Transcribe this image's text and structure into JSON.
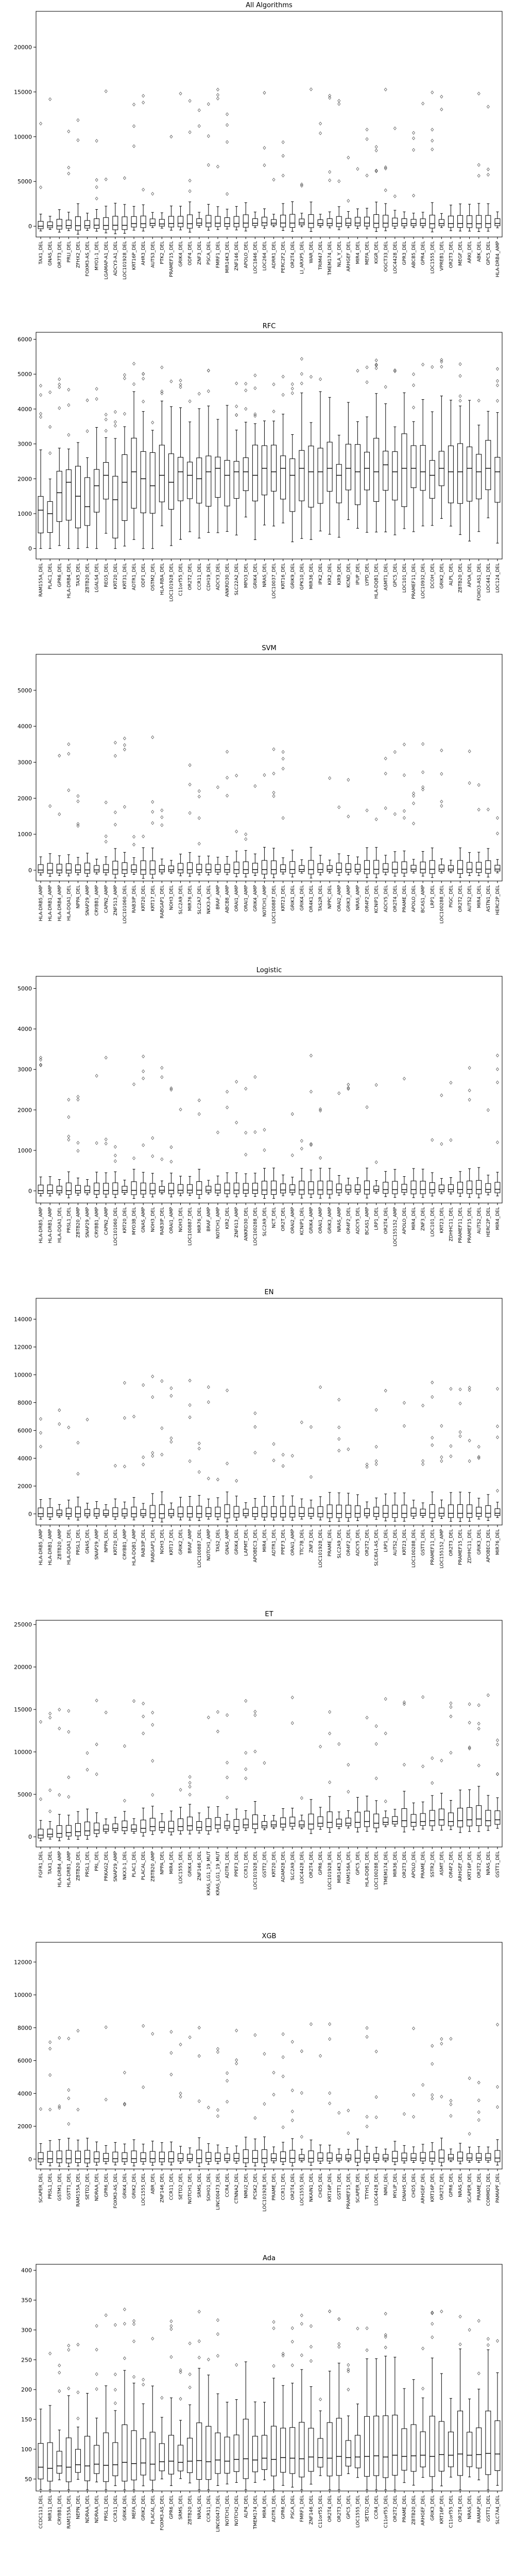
{
  "figure": {
    "background": "#ffffff",
    "box_edge_color": "#000000",
    "median_color": "#000000",
    "flier_marker": "diamond"
  },
  "chart_data": [
    {
      "type": "box",
      "title": "All Algorithms",
      "xlabel": "",
      "ylabel": "",
      "ylim": [
        -1200,
        24000
      ],
      "yticks": [
        0,
        5000,
        10000,
        15000,
        20000
      ],
      "categories": [
        "TAX1_DEL",
        "GNAS_DEL",
        "OR7T3_DEL",
        "PRLI_DEL",
        "ZFHX2_DEL",
        "FOXM3-AS_DEL",
        "MYO1-1_DEL",
        "LGAMAP-A1_DEL",
        "ADCY3-A1_DEL",
        "LOC101928_DEL",
        "KRT16P_DEL",
        "AHR3_DEL",
        "AUTS3_DEL",
        "PTK2_DEL",
        "PRAMEF15_DEL",
        "GRIK4_DEL",
        "ODF4_DEL",
        "ZNF3_DEL",
        "PSCA_DEL",
        "FMRF1_DEL",
        "MIR14K3_DEL",
        "ZNF146_DEL",
        "APOLO_DEL",
        "LOC1846_DEL",
        "LOC264_DEL",
        "ADRR1_DEL",
        "PERC2F2_DEL",
        "OR2T4_DEL",
        "LI_ARXP5_DEL",
        "WAR_DEL",
        "TRIM47_DEL",
        "TMEM174_DEL",
        "NLA_Y_DEL",
        "ARHGEF_DEL",
        "MIR4_DEL",
        "MEFA_DEL",
        "KIGR_DEL",
        "OGCT33_DEL",
        "LOC4428_DEL",
        "GPR3_DEL",
        "ABCB5_DEL",
        "GPR4_DEL",
        "LOC1555_DEL",
        "VPREB1_DEL",
        "OR2T3_DEL",
        "MEGF_DEL",
        "ARKI_DEL",
        "ABK_DEL",
        "GPC5_DEL",
        "HLA-DRB4_AMP"
      ],
      "series": [
        {
          "medians": [
            0,
            50,
            40,
            80,
            60,
            70,
            120,
            90,
            110,
            100,
            300,
            280,
            320,
            260,
            310,
            330,
            280,
            350,
            360,
            340,
            300,
            320,
            350,
            330,
            380,
            340,
            360,
            350,
            370,
            330,
            300,
            320,
            330,
            340,
            360,
            350,
            330,
            340,
            320,
            310,
            300,
            320,
            280,
            290,
            300,
            310,
            290,
            280,
            300,
            320
          ]
        }
      ]
    },
    {
      "type": "box",
      "title": "RFC",
      "xlabel": "",
      "ylabel": "",
      "ylim": [
        -300,
        6200
      ],
      "yticks": [
        0,
        1000,
        2000,
        3000,
        4000,
        5000,
        6000
      ],
      "categories": [
        "RAM155A_DEL",
        "PLAC1_DEL",
        "GPR6_DEL",
        "HLA-DRB4_DEL",
        "TAX5_DEL",
        "ZBTB20_DEL",
        "LGALS4_DEL",
        "REG5_DEL",
        "KRT20_DEL",
        "KRT31_DEL",
        "ADTR1_DEL",
        "ODF1_DEL",
        "OSTM2_DEL",
        "HLA-RBA_DEL",
        "LOC101928_DEL",
        "C11orf55_DEL",
        "OR2T2_DEL",
        "CCR11_DEL",
        "CDH19_DEL",
        "ADCY3_DEL",
        "ANKRD30_DEL",
        "SLC22A2_DEL",
        "MPO3_DEL",
        "GRIK4_DEL",
        "NRAS_DEL",
        "LOC10037_DEL",
        "KRT16_DEL",
        "GRIK9_DEL",
        "GPK10_DEL",
        "MIR36_DEL",
        "IPK2_DEL",
        "KIR2_DEL",
        "KIR9_DEL",
        "KCND_DEL",
        "IPUP_DEL",
        "LYPD_DEL",
        "HLA-DQB1_DEL",
        "ASMT1_DEL",
        "GPC5_DEL",
        "LOC101_DEL",
        "PRAMEF11_DEL",
        "LOC10932_DEL",
        "DCOH_DEL",
        "GRIK2_DEL",
        "ALPL_DEL",
        "ZBTB20_DEL",
        "APOA_DEL",
        "FOXO3-AS1_DEL",
        "LOC441_DEL",
        "LOC124_DEL"
      ],
      "series": [
        {
          "medians": [
            1100,
            1000,
            1600,
            1900,
            1500,
            1200,
            1800,
            2100,
            1400,
            1900,
            2200,
            2000,
            1800,
            2100,
            1900,
            2200,
            2100,
            2000,
            2200,
            2300,
            2100,
            2200,
            2200,
            2100,
            2300,
            2200,
            2300,
            2100,
            2300,
            2200,
            2200,
            2300,
            2100,
            2300,
            2200,
            2300,
            2200,
            2400,
            2200,
            2300,
            2300,
            2200,
            2100,
            2300,
            2200,
            2200,
            2300,
            2200,
            2300,
            2200
          ]
        }
      ]
    },
    {
      "type": "box",
      "title": "SVM",
      "xlabel": "",
      "ylabel": "",
      "ylim": [
        -300,
        6000
      ],
      "yticks": [
        0,
        1000,
        2000,
        3000,
        4000,
        5000
      ],
      "categories": [
        "HLA-DRB5_AMP",
        "HLA-DRB1_AMP",
        "HLA-DRB4_AMP",
        "HLA-DQA1_DEL",
        "NPPA_DEL",
        "SNAP29_AMP",
        "CRYBB1_AMP",
        "CAPN2_AMP",
        "ZNF513_AMP",
        "LOC101060_DEL",
        "RAB3IP_DEL",
        "KRT20_DEL",
        "KRT17_DEL",
        "RABGAP1_DEL",
        "NOH3_DEL",
        "SLC2A9_DEL",
        "MIR76_DEL",
        "SLC2A7_DEL",
        "NKX3-A_DEL",
        "BRAF_AMP",
        "ABCB8_AMP",
        "ORAI1_AMP",
        "ORAI1_AMP",
        "GRIK4_AMP",
        "NOTCH1_AMP",
        "LOC100887_DEL",
        "KRT23_DEL",
        "GRIK1_DEL",
        "GRIK4_DEL",
        "OR4K1_DEL",
        "TAS2R_DEL",
        "NPPC_DEL",
        "ORAI2_AMP",
        "GRIK3_AMP",
        "NRAS_AMP",
        "OR4F2_DEL",
        "KCNIP1_DEL",
        "ADCY5_DEL",
        "OR2T4_DEL",
        "PRAME_DEL",
        "APOLO_DEL",
        "BCAS1_AMP",
        "LRP1_DEL",
        "LOC100288_DEL",
        "PIGC_DEL",
        "OR2T2_DEL",
        "AUTS2_DEL",
        "MIR4_DEL",
        "ASTN1_DEL",
        "HERC2P_DEL"
      ],
      "series": [
        {
          "medians": [
            5,
            5,
            5,
            5,
            6,
            8,
            8,
            8,
            10,
            10,
            10,
            10,
            12,
            12,
            12,
            12,
            14,
            14,
            14,
            16,
            16,
            16,
            16,
            18,
            18,
            18,
            18,
            20,
            20,
            20,
            20,
            22,
            22,
            22,
            22,
            24,
            24,
            24,
            24,
            26,
            26,
            26,
            26,
            28,
            28,
            28,
            28,
            30,
            30,
            30
          ]
        }
      ]
    },
    {
      "type": "box",
      "title": "Logistic",
      "xlabel": "",
      "ylabel": "",
      "ylim": [
        -300,
        5300
      ],
      "yticks": [
        0,
        1000,
        2000,
        3000,
        4000,
        5000
      ],
      "categories": [
        "HLA-DRB5_AMP",
        "HLA-DRB1_AMP",
        "HLA-DQA1_DEL",
        "PRSL1_DEL",
        "ZBTB20_AMP",
        "SNAP29_AMP",
        "CRYBB1_AMP",
        "CAPN2_AMP",
        "LOC101060_DEL",
        "KRT20_DEL",
        "MYO3B_DEL",
        "GNAS_AMP",
        "NOH3_DEL",
        "RAB3IP_DEL",
        "ORAI1_AMP",
        "NOH3_DEL",
        "LOC100887_DEL",
        "MIR76_DEL",
        "BRAF_AMP",
        "NOTCH1_AMP",
        "KIR2_DEL",
        "ZNF613_AMP",
        "ANKRD30_DEL",
        "LOC100288_DEL",
        "SLC2A9_DEL",
        "NCT_DEL",
        "OR2T_DEL",
        "ORAI2_AMP",
        "KCNIP1_DEL",
        "GRIK4_AMP",
        "ORAI1_AMP",
        "GRIK3_AMP",
        "NRAS_AMP",
        "OR4F2_DEL",
        "ADCY5_DEL",
        "BCAS1_AMP",
        "LRP1_DEL",
        "OR2T4_DEL",
        "LOC155152_AMP",
        "APOLO_DEL",
        "MIR4_DEL",
        "ZNF3_DEL",
        "LOC101_DEL",
        "KRT23_DEL",
        "ZDHHC11_DEL",
        "PRAMEF11_DEL",
        "PRAMEF15_DEL",
        "AUTS2_DEL",
        "HERC2P_DEL",
        "MIR4_DEL"
      ],
      "series": [
        {
          "medians": [
            5,
            5,
            5,
            6,
            8,
            8,
            8,
            10,
            10,
            10,
            12,
            12,
            12,
            14,
            14,
            14,
            16,
            16,
            16,
            18,
            18,
            18,
            20,
            20,
            20,
            22,
            22,
            22,
            24,
            24,
            24,
            26,
            26,
            26,
            28,
            28,
            28,
            30,
            30,
            30,
            32,
            32,
            32,
            34,
            34,
            34,
            36,
            36,
            36,
            38
          ]
        }
      ]
    },
    {
      "type": "box",
      "title": "EN",
      "xlabel": "",
      "ylabel": "",
      "ylim": [
        -800,
        15500
      ],
      "yticks": [
        0,
        2000,
        4000,
        6000,
        8000,
        10000,
        12000,
        14000
      ],
      "categories": [
        "HLA-DRB5_AMP",
        "HLA-DRB1_AMP",
        "ZBTB20_AMP",
        "HLA-DQA1_DEL",
        "PRSL1_DEL",
        "GNAS_DEL",
        "SNAP29_AMP",
        "NPPA_DEL",
        "KRT20_DEL",
        "CRYBB1_AMP",
        "HLA-DQB1_AMP",
        "RAB3IP_DEL",
        "RABGAP1_DEL",
        "NOH3_DEL",
        "KRT17_DEL",
        "GRIK2_DEL",
        "BRAF_AMP",
        "LOC100887_DEL",
        "NOTCH1_AMP",
        "TAS2_DEL",
        "GNAS_AMP",
        "GRIK4_DEL",
        "LAPMT_DEL",
        "APOBEC3_DEL",
        "MIR4_DEL",
        "ADTR1_DEL",
        "PPEF3_DEL",
        "ORAI1_AMP",
        "TTC7B_DEL",
        "ZNF3_DEL",
        "LOC101928_DEL",
        "PRAME_DEL",
        "SLC2A9_DEL",
        "OR4F2_DEL",
        "ADCY5_DEL",
        "OR2T2_DEL",
        "SLC8A1-AS_DEL",
        "LRP1_DEL",
        "AUTS2_DEL",
        "KRT23_DEL",
        "LOC100288_DEL",
        "GSTT1_DEL",
        "PRAMEF11_DEL",
        "LOC155152_AMP",
        "OR2T3_DEL",
        "PRAMEF15_DEL",
        "ZDHHC11_DEL",
        "GRIK3_DEL",
        "APOBEC3_DEL",
        "MIR76_DEL"
      ],
      "series": [
        {
          "medians": [
            10,
            10,
            10,
            10,
            12,
            12,
            12,
            14,
            14,
            14,
            16,
            16,
            16,
            18,
            18,
            18,
            20,
            20,
            20,
            22,
            22,
            22,
            24,
            24,
            24,
            26,
            26,
            26,
            28,
            28,
            28,
            30,
            30,
            30,
            32,
            32,
            32,
            34,
            34,
            34,
            36,
            36,
            36,
            38,
            38,
            38,
            40,
            40,
            40,
            42
          ]
        }
      ]
    },
    {
      "type": "box",
      "title": "ET",
      "xlabel": "",
      "ylabel": "",
      "ylim": [
        -1200,
        25500
      ],
      "yticks": [
        0,
        5000,
        10000,
        15000,
        20000,
        25000
      ],
      "categories": [
        "FGFR1_DEL",
        "TAX1_DEL",
        "HLA-DRB4_AMP",
        "HLA-DRB1_AMP",
        "ZBTB20_DEL",
        "PRSL1_DEL",
        "PRL_DEL",
        "PRKAG2_DEL",
        "SNAP29_AMP",
        "NKX3-1_DEL",
        "PLAC1_DEL",
        "PLACAL_DEL",
        "ZBTB20_AMP",
        "NPPA_DEL",
        "MIR4_DEL",
        "LOC1555_DEL",
        "GRIK4_DEL",
        "ZNF146_DEL",
        "KRAS_LG1_19_MUT",
        "KRAS_LG1_19_MUT",
        "ADTR1_DEL",
        "PPEF3_DEL",
        "CCR11_DEL",
        "LOC101928_DEL",
        "GSTT2_DEL",
        "KRT20_DEL",
        "ADAM28_DEL",
        "SLC2A9_DEL",
        "LOC4428_DEL",
        "OR2T4_DEL",
        "GPR6_DEL",
        "LOC101928_DEL",
        "MIR14K3_DEL",
        "FAM156A_DEL",
        "GPC5_DEL",
        "HLA-DQB1_DEL",
        "LOC100288_DEL",
        "TMEM174_DEL",
        "MIR36_DEL",
        "OR2T3_DEL",
        "APOLO_DEL",
        "PRAME_DEL",
        "SSTR2_DEL",
        "ASMT_DEL",
        "OR4F2_DEL",
        "ARHGEF_DEL",
        "KRT16P_DEL",
        "OR2T2_DEL",
        "NRAS_DEL",
        "GSTT1_DEL"
      ],
      "series": [
        {
          "medians": [
            200,
            300,
            400,
            500,
            600,
            700,
            800,
            900,
            1000,
            1100,
            900,
            1000,
            1200,
            1100,
            1000,
            1200,
            1300,
            1100,
            1200,
            1400,
            1300,
            1200,
            1400,
            1500,
            1300,
            1400,
            1500,
            1600,
            1400,
            1500,
            1600,
            1700,
            1500,
            1600,
            1700,
            1800,
            1600,
            1700,
            1800,
            1900,
            1700,
            1800,
            1900,
            2000,
            1800,
            1900,
            2000,
            2100,
            1900,
            2000
          ]
        }
      ]
    },
    {
      "type": "box",
      "title": "XGB",
      "xlabel": "",
      "ylabel": "",
      "ylim": [
        -600,
        13200
      ],
      "yticks": [
        0,
        2000,
        4000,
        6000,
        8000,
        10000,
        12000
      ],
      "categories": [
        "SCAPER_DEL",
        "PRSL1_DEL",
        "GSTM1_DEL",
        "GSTT1_DEL",
        "RAM155A_DEL",
        "SETD2_DEL",
        "NDRAA_DEL",
        "GPR6_DEL",
        "FOXM3-AS_DEL",
        "GRIK4_DEL",
        "GRIK2_DEL",
        "LOC1555_DEL",
        "ABR_DEL",
        "ZNF146_DEL",
        "CCR11_DEL",
        "SETD2_DEL",
        "NOTCH1_DEL",
        "SRMS_DEL",
        "SOHO1_DEL",
        "LINC00473_DEL",
        "CCR4_DEL",
        "CTNNA2_DEL",
        "NMU2_DEL",
        "PCSK2_DEL",
        "LOC101928_DEL",
        "PRAME_DEL",
        "CCR11_DEL",
        "OR2T4_DEL",
        "LOC1555_DEL",
        "NKAIN1_DEL",
        "CHD5_DEL",
        "KRT16P_DEL",
        "GSTT1_DEL",
        "PRAMEF15_DEL",
        "SCAPER_DEL",
        "TTYH1_DEL",
        "LOC4428_DEL",
        "NMU_DEL",
        "MYLIP_DEL",
        "DNAH5_DEL",
        "CHD5_DEL",
        "ARHGEF_DEL",
        "KRT16P_DEL",
        "OR2T2_DEL",
        "GPR6_DEL",
        "NRAS_DEL",
        "SCAPER_DEL",
        "PRAME_DEL",
        "COMMD1_DEL",
        "PAMAPF_DEL"
      ],
      "series": [
        {
          "medians": [
            20,
            20,
            22,
            22,
            24,
            24,
            26,
            26,
            28,
            28,
            30,
            30,
            32,
            32,
            34,
            34,
            36,
            36,
            38,
            38,
            40,
            40,
            42,
            42,
            44,
            44,
            46,
            46,
            48,
            48,
            50,
            50,
            52,
            52,
            54,
            54,
            56,
            56,
            58,
            58,
            60,
            60,
            62,
            62,
            64,
            64,
            66,
            66,
            68,
            68
          ]
        }
      ]
    },
    {
      "type": "box",
      "title": "Ada",
      "xlabel": "",
      "ylabel": "",
      "ylim": [
        30,
        410
      ],
      "yticks": [
        50,
        100,
        150,
        200,
        250,
        300,
        350,
        400
      ],
      "categories": [
        "CCDC113_DEL",
        "MIR11_DEL",
        "CRYBB1_DEL",
        "RAM155A_DEL",
        "NEPN_DEL",
        "NDRAA_DEL",
        "NDRAA_DEL",
        "PRSL1_DEL",
        "CCR11_DEL",
        "GRIK4_DEL",
        "MEFA_DEL",
        "GRIK2_DEL",
        "PLACAL_DEL",
        "FOXM3-AS_DEL",
        "GPR6_DEL",
        "SRMS_DEL",
        "ZBTB20_DEL",
        "NRAS_DEL",
        "CCR11_DEL",
        "LINC00473_DEL",
        "NOTCH1_DEL",
        "NOTCH2_DEL",
        "ALP4_DEL",
        "TMEM174_DEL",
        "MIR4_DEL",
        "ADTR1_DEL",
        "GPR6_DEL",
        "PSCA_DEL",
        "FMRF1_DEL",
        "ZNF146_DEL",
        "C11orf55_DEL",
        "OR2T4_DEL",
        "OR2T3_DEL",
        "GPC5_DEL",
        "LOC1555_DEL",
        "SETD2_DEL",
        "CCR4_DEL",
        "C11orf55_DEL",
        "OR2T2_DEL",
        "PRAME_DEL",
        "ZBTB20_DEL",
        "ARHGEF_DEL",
        "GRIK3_DEL",
        "KRT16P_DEL",
        "C11orf55_DEL",
        "OR2T4_DEL",
        "NRAS_DEL",
        "RAMAP_DEL",
        "GSTT1_DEL",
        "SLC7A4_DEL"
      ],
      "series": [
        {
          "medians": [
            70,
            68,
            72,
            70,
            74,
            72,
            75,
            73,
            74,
            78,
            76,
            77,
            75,
            79,
            80,
            78,
            80,
            81,
            79,
            82,
            80,
            83,
            84,
            82,
            85,
            83,
            86,
            85,
            84,
            87,
            86,
            85,
            88,
            86,
            87,
            88,
            89,
            87,
            90,
            88,
            89,
            90,
            88,
            91,
            90,
            92,
            90,
            91,
            93,
            92
          ]
        }
      ]
    }
  ]
}
